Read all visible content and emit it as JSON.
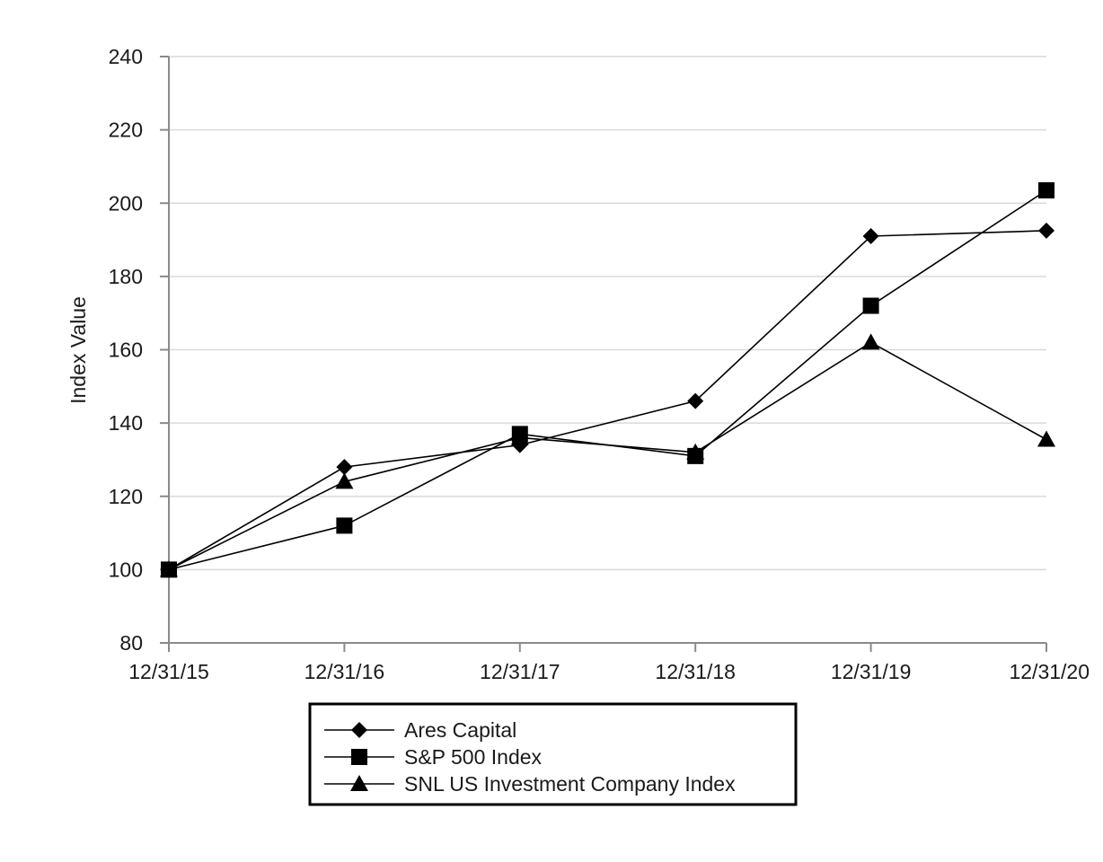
{
  "chart_data": {
    "type": "line",
    "title": "",
    "xlabel": "",
    "ylabel": "Index Value",
    "categories": [
      "12/31/15",
      "12/31/16",
      "12/31/17",
      "12/31/18",
      "12/31/19",
      "12/31/20"
    ],
    "yticks": [
      "80",
      "100",
      "120",
      "140",
      "160",
      "180",
      "200",
      "220",
      "240"
    ],
    "ylim": [
      80,
      240
    ],
    "grid": "horizontal",
    "legend_position": "bottom-center",
    "series": [
      {
        "name": "Ares Capital",
        "marker": "diamond",
        "color": "#000000",
        "values": [
          100,
          128,
          134,
          146,
          191,
          192.5
        ]
      },
      {
        "name": "S&P 500 Index",
        "marker": "square",
        "color": "#000000",
        "values": [
          100,
          112,
          137,
          131,
          172,
          203.5
        ]
      },
      {
        "name": "SNL US Investment Company Index",
        "marker": "triangle",
        "color": "#000000",
        "values": [
          100,
          124,
          136,
          132,
          162,
          135.5
        ]
      }
    ]
  }
}
